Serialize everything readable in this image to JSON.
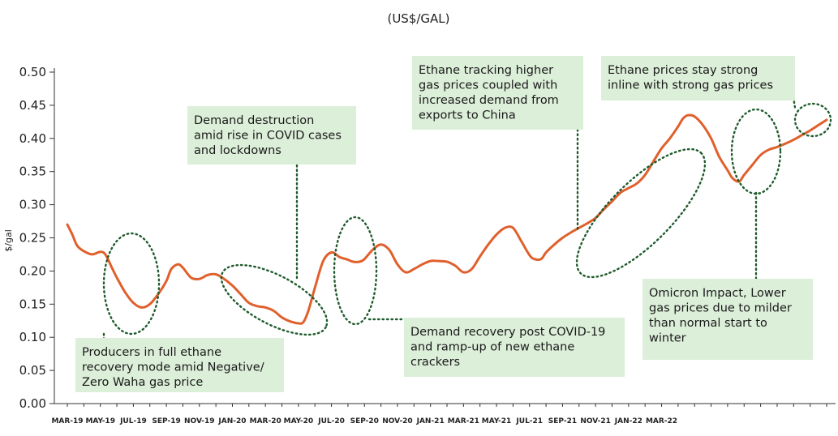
{
  "chart_data": {
    "type": "line",
    "title": "(US$/GAL)",
    "ylabel": "$/gal",
    "xlabel": "",
    "ylim": [
      0,
      0.5
    ],
    "grid": false,
    "legend": "none",
    "y_ticks": [
      "0.00",
      "0.05",
      "0.10",
      "0.15",
      "0.20",
      "0.25",
      "0.30",
      "0.35",
      "0.40",
      "0.45",
      "0.50"
    ],
    "x_ticks": [
      "MAR-19",
      "MAY-19",
      "JUL-19",
      "SEP-19",
      "NOV-19",
      "JAN-20",
      "MAR-20",
      "MAY-20",
      "JUL-20",
      "SEP-20",
      "NOV-20",
      "JAN-21",
      "MAR-21",
      "MAY-21",
      "JUL-21",
      "SEP-21",
      "NOV-21",
      "JAN-22",
      "MAR-22"
    ],
    "series": [
      {
        "color": "#e0602c",
        "x": [
          0,
          0.3,
          0.6,
          1,
          1.5,
          2,
          2.3,
          2.7,
          3,
          3.5,
          4,
          4.5,
          5,
          5.5,
          6,
          6.3,
          6.7,
          7,
          7.5,
          8,
          8.5,
          9,
          9.5,
          10,
          10.5,
          11,
          11.5,
          12,
          12.5,
          13,
          13.5,
          14,
          14.3,
          14.6,
          15,
          15.5,
          16,
          16.5,
          17,
          17.3,
          17.7,
          18,
          18.5,
          19,
          19.5,
          20,
          20.5,
          21,
          21.5,
          22,
          22.5,
          23,
          23.5,
          24,
          24.5,
          25,
          25.5,
          26,
          26.5,
          27,
          27.5,
          28,
          28.3,
          28.7,
          29,
          29.5,
          30,
          30.5,
          31,
          31.5,
          32,
          32.5,
          33,
          33.5,
          34,
          34.5,
          35,
          35.5,
          36
        ],
        "values": [
          0.27,
          0.255,
          0.238,
          0.23,
          0.225,
          0.229,
          0.225,
          0.205,
          0.19,
          0.168,
          0.152,
          0.145,
          0.15,
          0.165,
          0.185,
          0.203,
          0.21,
          0.205,
          0.19,
          0.188,
          0.194,
          0.195,
          0.188,
          0.178,
          0.165,
          0.152,
          0.147,
          0.145,
          0.14,
          0.13,
          0.124,
          0.121,
          0.123,
          0.14,
          0.175,
          0.215,
          0.228,
          0.221,
          0.217,
          0.214,
          0.214,
          0.218,
          0.232,
          0.24,
          0.232,
          0.21,
          0.198,
          0.203,
          0.21,
          0.215,
          0.215,
          0.214,
          0.208,
          0.198,
          0.203,
          0.222,
          0.24,
          0.255,
          0.265,
          0.265,
          0.245,
          0.224,
          0.218,
          0.218,
          0.228,
          0.24,
          0.25,
          0.258,
          0.265,
          0.272,
          0.28,
          0.293,
          0.305,
          0.318,
          0.325,
          0.332,
          0.345,
          0.365,
          0.385
        ],
        "extra": {
          "x": [
            36.5,
            37,
            37.3,
            37.6,
            38,
            38.5,
            39,
            39.5,
            40,
            40.3,
            40.7,
            41,
            41.5,
            42,
            42.5,
            43,
            43.5,
            44,
            44.5,
            45,
            45.5,
            46
          ],
          "values": [
            0.4,
            0.418,
            0.43,
            0.435,
            0.433,
            0.42,
            0.4,
            0.372,
            0.352,
            0.34,
            0.335,
            0.345,
            0.36,
            0.375,
            0.383,
            0.387,
            0.392,
            0.398,
            0.405,
            0.412,
            0.42,
            0.428
          ]
        }
      }
    ],
    "annotations": [
      {
        "lines": [
          "Producers in full ethane",
          "recovery mode amid Negative/",
          "Zero Waha gas price"
        ]
      },
      {
        "lines": [
          "Demand destruction",
          "amid rise in COVID cases",
          "and lockdowns"
        ]
      },
      {
        "lines": [
          "Demand recovery post COVID-19",
          "and ramp-up of new ethane",
          "crackers"
        ]
      },
      {
        "lines": [
          "Ethane tracking higher",
          "gas prices coupled with",
          "increased demand from",
          "exports to China"
        ]
      },
      {
        "lines": [
          "Ethane prices stay strong",
          "inline with strong gas prices"
        ]
      },
      {
        "lines": [
          "Omicron Impact, Lower",
          "gas prices due to milder",
          "than normal start to",
          "winter"
        ]
      }
    ]
  }
}
